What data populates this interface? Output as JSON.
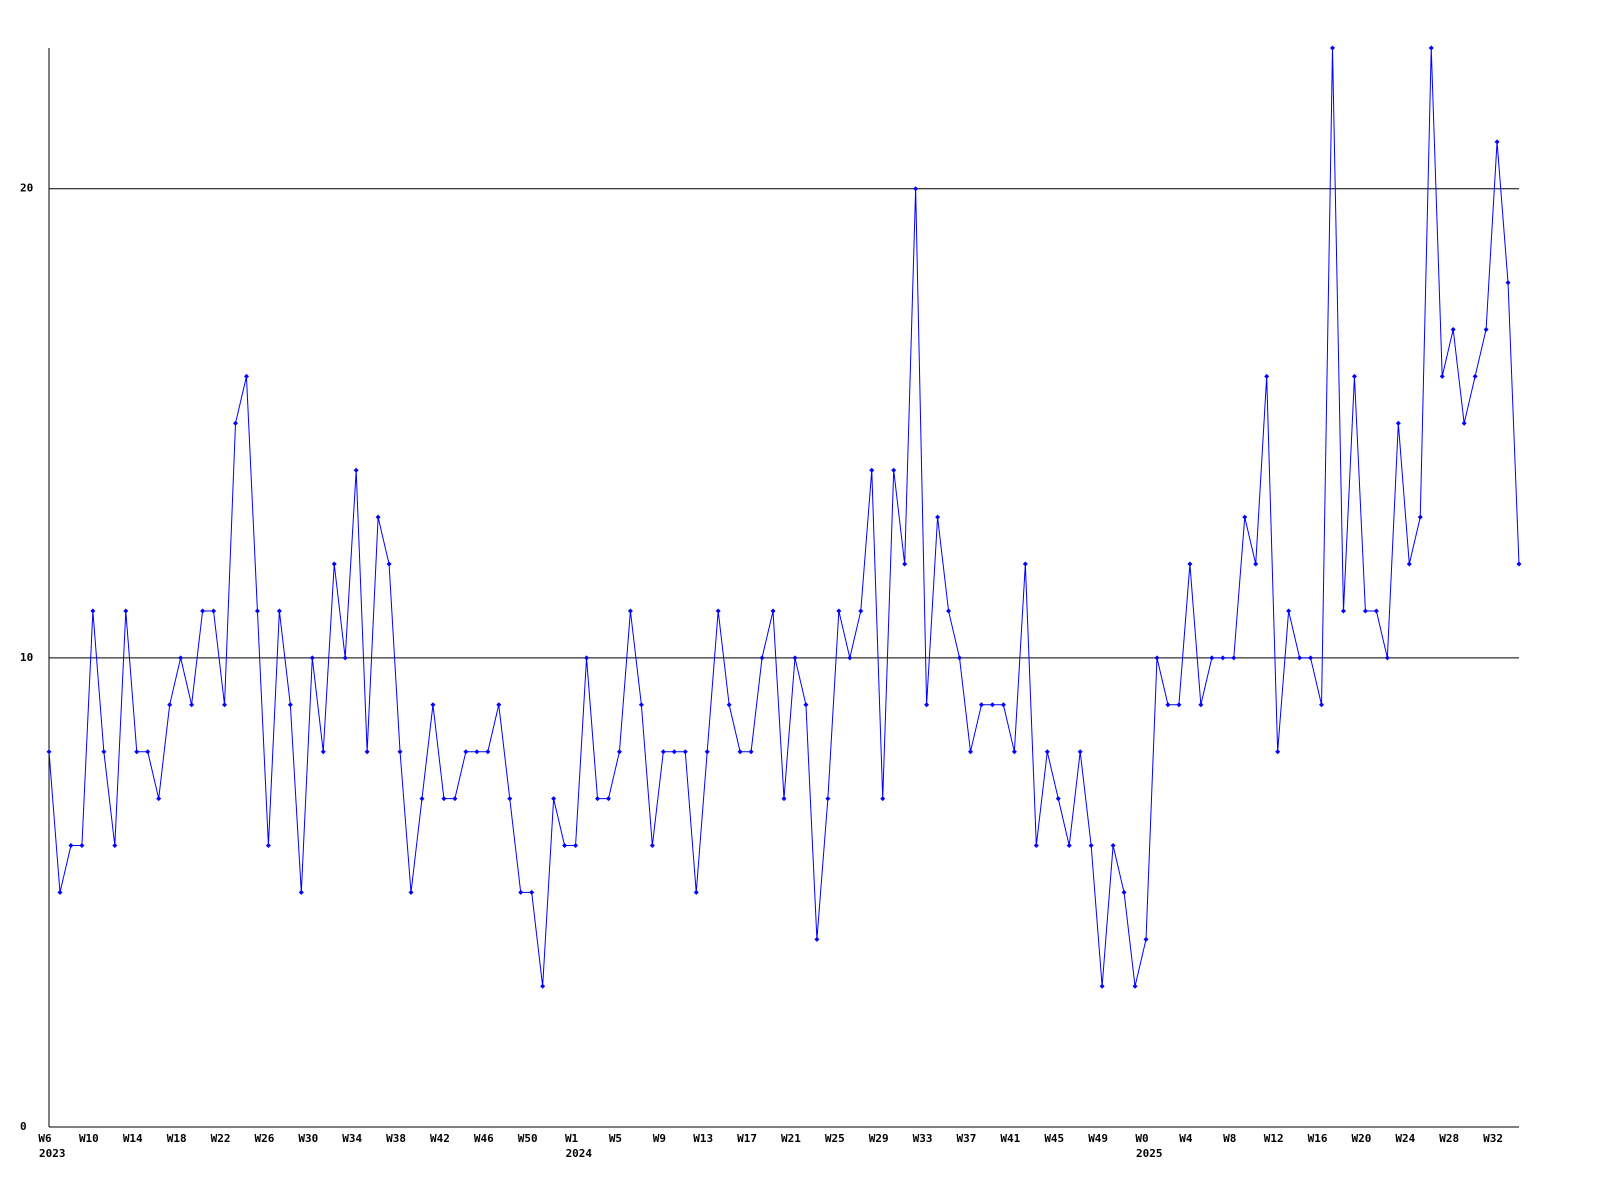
{
  "chart_data": {
    "type": "line",
    "categories": [
      "W6",
      null,
      null,
      null,
      "W10",
      null,
      null,
      null,
      "W14",
      null,
      null,
      null,
      "W18",
      null,
      null,
      null,
      "W22",
      null,
      null,
      null,
      "W26",
      null,
      null,
      null,
      "W30",
      null,
      null,
      null,
      "W34",
      null,
      null,
      null,
      "W38",
      null,
      null,
      null,
      "W42",
      null,
      null,
      null,
      "W46",
      null,
      null,
      null,
      "W50",
      null,
      null,
      null,
      "W1",
      null,
      null,
      null,
      "W5",
      null,
      null,
      null,
      "W9",
      null,
      null,
      null,
      "W13",
      null,
      null,
      null,
      "W17",
      null,
      null,
      null,
      "W21",
      null,
      null,
      null,
      "W25",
      null,
      null,
      null,
      "W29",
      null,
      null,
      null,
      "W33",
      null,
      null,
      null,
      "W37",
      null,
      null,
      null,
      "W41",
      null,
      null,
      null,
      "W45",
      null,
      null,
      null,
      "W49",
      null,
      null,
      null,
      "W0",
      null,
      null,
      null,
      "W4",
      null,
      null,
      null,
      "W8",
      null,
      null,
      null,
      "W12",
      null,
      null,
      null,
      "W16",
      null,
      null,
      null,
      "W20",
      null,
      null,
      null,
      "W24",
      null,
      null,
      null,
      "W28",
      null,
      null,
      null,
      "W32",
      null,
      null
    ],
    "years": [
      "2023",
      null,
      null,
      null,
      null,
      null,
      null,
      null,
      null,
      null,
      null,
      null,
      null,
      null,
      null,
      null,
      null,
      null,
      null,
      null,
      null,
      null,
      null,
      null,
      null,
      null,
      null,
      null,
      null,
      null,
      null,
      null,
      null,
      null,
      null,
      null,
      null,
      null,
      null,
      null,
      null,
      null,
      null,
      null,
      null,
      null,
      null,
      null,
      "2024",
      null,
      null,
      null,
      null,
      null,
      null,
      null,
      null,
      null,
      null,
      null,
      null,
      null,
      null,
      null,
      null,
      null,
      null,
      null,
      null,
      null,
      null,
      null,
      null,
      null,
      null,
      null,
      null,
      null,
      null,
      null,
      null,
      null,
      null,
      null,
      null,
      null,
      null,
      null,
      null,
      null,
      null,
      null,
      null,
      null,
      null,
      null,
      null,
      null,
      null,
      null,
      "2025",
      null,
      null,
      null,
      null,
      null,
      null,
      null,
      null,
      null,
      null,
      null,
      null,
      null,
      null,
      null,
      null,
      null,
      null,
      null,
      null,
      null,
      null,
      null,
      null,
      null,
      null,
      null,
      null,
      null,
      null,
      null,
      null,
      null,
      null
    ],
    "values": [
      8,
      5,
      6,
      6,
      11,
      8,
      6,
      11,
      8,
      8,
      7,
      9,
      10,
      9,
      11,
      11,
      9,
      15,
      16,
      11,
      6,
      11,
      9,
      5,
      10,
      8,
      12,
      10,
      14,
      8,
      13,
      12,
      8,
      5,
      7,
      9,
      7,
      7,
      8,
      8,
      8,
      9,
      7,
      5,
      5,
      3,
      7,
      6,
      6,
      10,
      7,
      7,
      8,
      11,
      9,
      6,
      8,
      8,
      8,
      5,
      8,
      11,
      9,
      8,
      8,
      10,
      11,
      7,
      10,
      9,
      4,
      7,
      11,
      10,
      11,
      14,
      7,
      14,
      12,
      20,
      9,
      13,
      11,
      10,
      8,
      9,
      9,
      9,
      8,
      12,
      6,
      8,
      7,
      6,
      8,
      6,
      3,
      6,
      5,
      3,
      4,
      10,
      9,
      9,
      12,
      9,
      10,
      10,
      10,
      13,
      12,
      16,
      8,
      11,
      10,
      10,
      9,
      23,
      11,
      16,
      11,
      11,
      10,
      15,
      12,
      13,
      23,
      16,
      17,
      15,
      16,
      17,
      21,
      18,
      12
    ],
    "color": "#0000ff",
    "ylim": [
      0,
      23
    ],
    "yticks": [
      0,
      10,
      20
    ],
    "grid": true
  }
}
